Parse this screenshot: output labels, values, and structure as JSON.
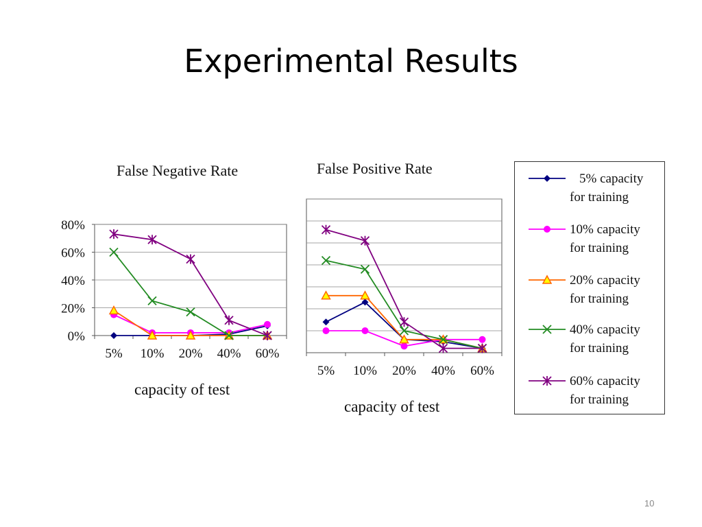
{
  "slide": {
    "title": "Experimental Results",
    "page_number": "10"
  },
  "chart_data": [
    {
      "type": "line",
      "title": "False Negative Rate",
      "xlabel": "capacity of test",
      "ylabel": "",
      "categories": [
        "5%",
        "10%",
        "20%",
        "40%",
        "60%"
      ],
      "yticks": [
        "0%",
        "20%",
        "40%",
        "60%",
        "80%"
      ],
      "ylim": [
        0,
        80
      ],
      "grid": true,
      "series": [
        {
          "name": "5% capacity for training",
          "values": [
            0,
            0,
            0,
            1,
            7
          ],
          "color": "#000080",
          "marker": "diamond"
        },
        {
          "name": "10% capacity for training",
          "values": [
            15,
            2,
            2,
            2,
            8
          ],
          "color": "#ff00ff",
          "marker": "circle"
        },
        {
          "name": "20% capacity for training",
          "values": [
            18,
            0,
            0,
            0,
            0
          ],
          "color": "#ff6600",
          "marker": "triangle"
        },
        {
          "name": "40% capacity for training",
          "values": [
            60,
            25,
            17,
            0,
            0
          ],
          "color": "#228b22",
          "marker": "x"
        },
        {
          "name": "60% capacity for training",
          "values": [
            73,
            69,
            55,
            11,
            0
          ],
          "color": "#800080",
          "marker": "star"
        }
      ]
    },
    {
      "type": "line",
      "title": "False Positive Rate",
      "xlabel": "capacity of test",
      "ylabel": "",
      "categories": [
        "5%",
        "10%",
        "20%",
        "40%",
        "60%"
      ],
      "ylim": [
        0,
        7
      ],
      "grid": true,
      "series": [
        {
          "name": "5% capacity for training",
          "values": [
            1.4,
            2.3,
            0.6,
            0.5,
            0.2
          ],
          "color": "#000080",
          "marker": "diamond"
        },
        {
          "name": "10% capacity for training",
          "values": [
            1.0,
            1.0,
            0.3,
            0.6,
            0.6
          ],
          "color": "#ff00ff",
          "marker": "circle"
        },
        {
          "name": "20% capacity for training",
          "values": [
            2.6,
            2.6,
            0.6,
            0.6,
            0.2
          ],
          "color": "#ff6600",
          "marker": "triangle"
        },
        {
          "name": "40% capacity for training",
          "values": [
            4.2,
            3.8,
            1.0,
            0.6,
            0.2
          ],
          "color": "#228b22",
          "marker": "x"
        },
        {
          "name": "60% capacity for training",
          "values": [
            5.6,
            5.1,
            1.4,
            0.2,
            0.2
          ],
          "color": "#800080",
          "marker": "star"
        }
      ]
    }
  ],
  "legend": {
    "entries": [
      {
        "line1": "5% capacity",
        "line2": "for training"
      },
      {
        "line1": "10% capacity",
        "line2": "for training"
      },
      {
        "line1": "20% capacity",
        "line2": "for training"
      },
      {
        "line1": "40% capacity",
        "line2": "for training"
      },
      {
        "line1": "60% capacity",
        "line2": "for training"
      }
    ]
  }
}
